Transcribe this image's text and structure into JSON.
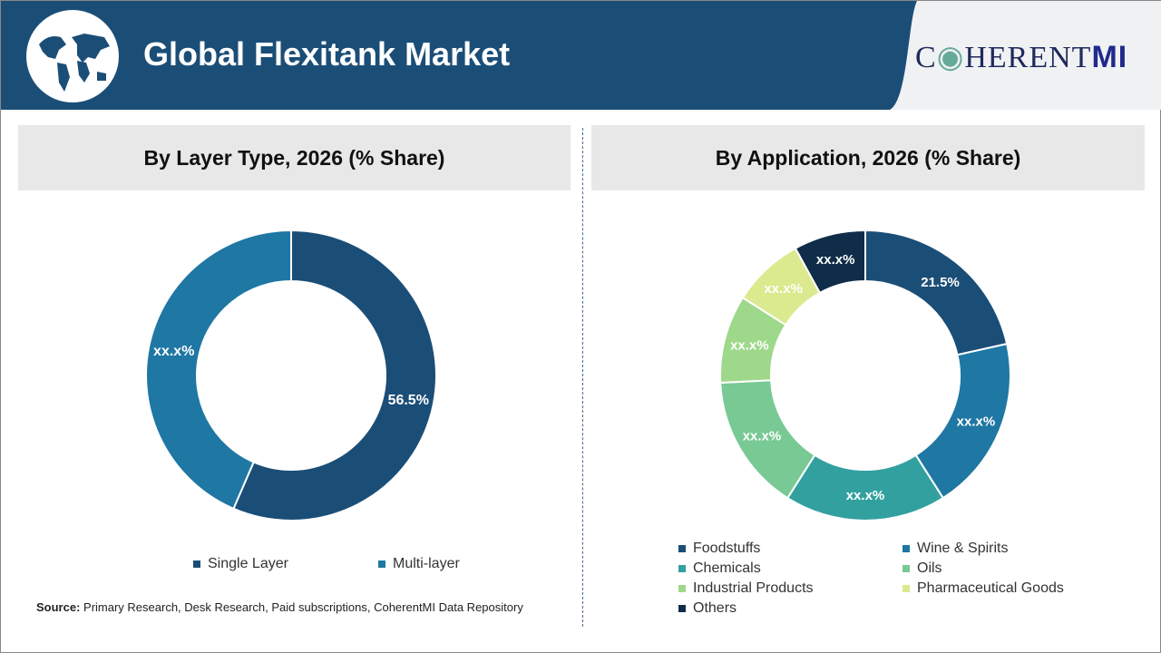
{
  "header": {
    "title": "Global Flexitank Market",
    "logo_text": "COHERENTMI"
  },
  "source": {
    "label": "Source:",
    "text": " Primary Research, Desk Research, Paid subscriptions, CoherentMI Data Repository"
  },
  "chart_data": [
    {
      "type": "pie",
      "donut": true,
      "title": "By Layer Type, 2026 (% Share)",
      "categories": [
        "Single Layer",
        "Multi-layer"
      ],
      "values": [
        56.5,
        43.5
      ],
      "data_labels": [
        "56.5%",
        "xx.x%"
      ],
      "colors": [
        "#1b4e77",
        "#1f77a3"
      ],
      "legend": "bottom"
    },
    {
      "type": "pie",
      "donut": true,
      "title": "By Application, 2026 (% Share)",
      "categories": [
        "Foodstuffs",
        "Wine & Spirits",
        "Chemicals",
        "Oils",
        "Industrial Products",
        "Pharmaceutical Goods",
        "Others"
      ],
      "values": [
        21.5,
        19.5,
        18,
        15.2,
        9.8,
        8,
        8
      ],
      "data_labels": [
        "21.5%",
        "xx.x%",
        "xx.x%",
        "xx.x%",
        "xx.x%",
        "xx.x%",
        "xx.x%"
      ],
      "colors": [
        "#1b4e77",
        "#1f77a3",
        "#33a0a0",
        "#78c994",
        "#9ed88a",
        "#dbea8e",
        "#0f2d48"
      ],
      "legend": "bottom"
    }
  ]
}
